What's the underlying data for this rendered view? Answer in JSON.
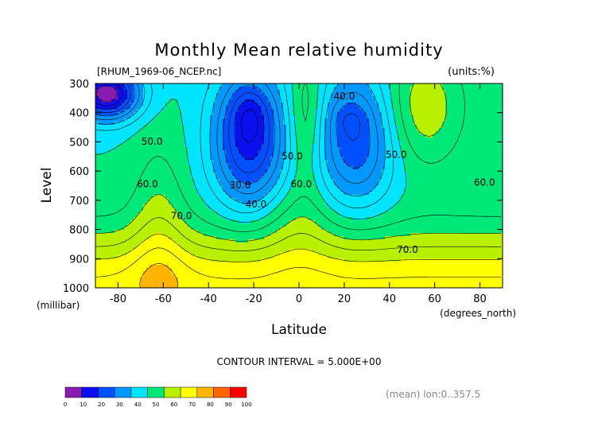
{
  "chart_data": {
    "type": "contour",
    "title": "Monthly Mean relative humidity",
    "file_label": "[RHUM_1969-06_NCEP.nc]",
    "units_label": "(units:%)",
    "xlabel": "Latitude",
    "x_units": "(degrees_north)",
    "ylabel": "Level",
    "y_units": "(millibar)",
    "xlim": [
      -90,
      90
    ],
    "ylim": [
      1000,
      300
    ],
    "x_ticks": [
      -80,
      -60,
      -40,
      -20,
      0,
      20,
      40,
      60,
      80
    ],
    "y_ticks": [
      300,
      400,
      500,
      600,
      700,
      800,
      900,
      1000
    ],
    "contour_interval_text": "CONTOUR INTERVAL = 5.000E+00",
    "footer_text": "(mean) lon:0..357.5",
    "levels": [
      0,
      10,
      20,
      30,
      40,
      50,
      60,
      70,
      80,
      90,
      100
    ],
    "colors": [
      "#8a1bb0",
      "#0a0ff0",
      "#0050ff",
      "#0099ff",
      "#00e5ff",
      "#00e878",
      "#b8f000",
      "#ffff00",
      "#ffb400",
      "#ff6400",
      "#ff0000"
    ],
    "contour_labels": [
      {
        "text": "40.0",
        "lat": 20,
        "lev": 355
      },
      {
        "text": "50.0",
        "lat": -65,
        "lev": 510
      },
      {
        "text": "60.0",
        "lat": -67,
        "lev": 655
      },
      {
        "text": "30.0",
        "lat": -26,
        "lev": 660
      },
      {
        "text": "40.0",
        "lat": -19,
        "lev": 725
      },
      {
        "text": "50.0",
        "lat": -3,
        "lev": 560
      },
      {
        "text": "60.0",
        "lat": 1,
        "lev": 655
      },
      {
        "text": "50.0",
        "lat": 43,
        "lev": 555
      },
      {
        "text": "60.0",
        "lat": 82,
        "lev": 650
      },
      {
        "text": "70.0",
        "lat": -52,
        "lev": 765
      },
      {
        "text": "70.0",
        "lat": 48,
        "lev": 880
      }
    ]
  }
}
